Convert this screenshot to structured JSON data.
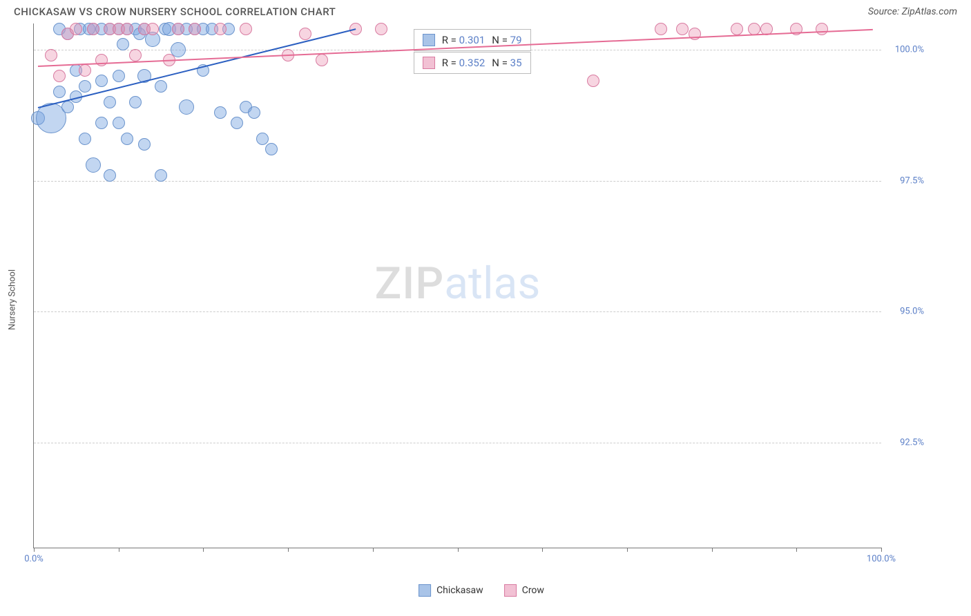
{
  "title": "CHICKASAW VS CROW NURSERY SCHOOL CORRELATION CHART",
  "source": "Source: ZipAtlas.com",
  "ylabel": "Nursery School",
  "watermark_part1": "ZIP",
  "watermark_part2": "atlas",
  "chart": {
    "type": "scatter",
    "background_color": "#ffffff",
    "grid_color": "#cccccc",
    "axis_color": "#777777",
    "xlim": [
      0,
      100
    ],
    "ylim": [
      90.5,
      100.5
    ],
    "xticks": [
      0,
      10,
      20,
      30,
      40,
      50,
      60,
      70,
      80,
      90,
      100
    ],
    "xtick_labels": {
      "0": "0.0%",
      "100": "100.0%"
    },
    "yticks": [
      92.5,
      95.0,
      97.5,
      100.0
    ],
    "ytick_labels": [
      "92.5%",
      "95.0%",
      "97.5%",
      "100.0%"
    ],
    "series": [
      {
        "name": "Chickasaw",
        "fill": "rgba(120,165,225,0.45)",
        "stroke": "#6a93cc",
        "legend_fill": "#a9c4e8",
        "legend_stroke": "#6a93cc",
        "trend_color": "#2b5fc1",
        "trend": {
          "x1": 0.5,
          "y1": 98.9,
          "x2": 38,
          "y2": 100.4
        },
        "R": "0.301",
        "N": "79",
        "points": [
          {
            "x": 0.5,
            "y": 98.7,
            "r": 10
          },
          {
            "x": 2,
            "y": 98.7,
            "r": 22
          },
          {
            "x": 3,
            "y": 99.2,
            "r": 9
          },
          {
            "x": 3,
            "y": 100.4,
            "r": 9
          },
          {
            "x": 4,
            "y": 98.9,
            "r": 9
          },
          {
            "x": 4,
            "y": 100.3,
            "r": 9
          },
          {
            "x": 5,
            "y": 99.6,
            "r": 9
          },
          {
            "x": 5,
            "y": 99.1,
            "r": 9
          },
          {
            "x": 5.5,
            "y": 100.4,
            "r": 9
          },
          {
            "x": 6,
            "y": 98.3,
            "r": 9
          },
          {
            "x": 6,
            "y": 99.3,
            "r": 9
          },
          {
            "x": 6.5,
            "y": 100.4,
            "r": 9
          },
          {
            "x": 7,
            "y": 97.8,
            "r": 11
          },
          {
            "x": 7,
            "y": 100.4,
            "r": 9
          },
          {
            "x": 8,
            "y": 98.6,
            "r": 9
          },
          {
            "x": 8,
            "y": 99.4,
            "r": 9
          },
          {
            "x": 8,
            "y": 100.4,
            "r": 9
          },
          {
            "x": 9,
            "y": 97.6,
            "r": 9
          },
          {
            "x": 9,
            "y": 99.0,
            "r": 9
          },
          {
            "x": 9,
            "y": 100.4,
            "r": 9
          },
          {
            "x": 10,
            "y": 98.6,
            "r": 9
          },
          {
            "x": 10,
            "y": 99.5,
            "r": 9
          },
          {
            "x": 10,
            "y": 100.4,
            "r": 9
          },
          {
            "x": 10.5,
            "y": 100.1,
            "r": 9
          },
          {
            "x": 11,
            "y": 98.3,
            "r": 9
          },
          {
            "x": 11,
            "y": 100.4,
            "r": 9
          },
          {
            "x": 12,
            "y": 99.0,
            "r": 9
          },
          {
            "x": 12,
            "y": 100.4,
            "r": 9
          },
          {
            "x": 12.5,
            "y": 100.3,
            "r": 9
          },
          {
            "x": 13,
            "y": 98.2,
            "r": 9
          },
          {
            "x": 13,
            "y": 99.5,
            "r": 10
          },
          {
            "x": 13,
            "y": 100.4,
            "r": 9
          },
          {
            "x": 14,
            "y": 100.2,
            "r": 11
          },
          {
            "x": 15,
            "y": 99.3,
            "r": 9
          },
          {
            "x": 15,
            "y": 97.6,
            "r": 9
          },
          {
            "x": 15.5,
            "y": 100.4,
            "r": 9
          },
          {
            "x": 16,
            "y": 100.4,
            "r": 10
          },
          {
            "x": 17,
            "y": 100.0,
            "r": 11
          },
          {
            "x": 17,
            "y": 100.4,
            "r": 9
          },
          {
            "x": 18,
            "y": 98.9,
            "r": 11
          },
          {
            "x": 18,
            "y": 100.4,
            "r": 9
          },
          {
            "x": 19,
            "y": 100.4,
            "r": 9
          },
          {
            "x": 20,
            "y": 99.6,
            "r": 9
          },
          {
            "x": 20,
            "y": 100.4,
            "r": 9
          },
          {
            "x": 21,
            "y": 100.4,
            "r": 9
          },
          {
            "x": 22,
            "y": 98.8,
            "r": 9
          },
          {
            "x": 23,
            "y": 100.4,
            "r": 9
          },
          {
            "x": 24,
            "y": 98.6,
            "r": 9
          },
          {
            "x": 25,
            "y": 98.9,
            "r": 9
          },
          {
            "x": 26,
            "y": 98.8,
            "r": 9
          },
          {
            "x": 27,
            "y": 98.3,
            "r": 9
          },
          {
            "x": 28,
            "y": 98.1,
            "r": 9
          }
        ]
      },
      {
        "name": "Crow",
        "fill": "rgba(235,150,180,0.40)",
        "stroke": "#d87aa0",
        "legend_fill": "#f2c1d4",
        "legend_stroke": "#d87aa0",
        "trend_color": "#e56b94",
        "trend": {
          "x1": 0.5,
          "y1": 99.7,
          "x2": 99,
          "y2": 100.4
        },
        "R": "0.352",
        "N": "35",
        "points": [
          {
            "x": 2,
            "y": 99.9,
            "r": 9
          },
          {
            "x": 3,
            "y": 99.5,
            "r": 9
          },
          {
            "x": 4,
            "y": 100.3,
            "r": 9
          },
          {
            "x": 5,
            "y": 100.4,
            "r": 9
          },
          {
            "x": 6,
            "y": 99.6,
            "r": 9
          },
          {
            "x": 7,
            "y": 100.4,
            "r": 9
          },
          {
            "x": 8,
            "y": 99.8,
            "r": 9
          },
          {
            "x": 9,
            "y": 100.4,
            "r": 9
          },
          {
            "x": 10,
            "y": 100.4,
            "r": 9
          },
          {
            "x": 11,
            "y": 100.4,
            "r": 9
          },
          {
            "x": 12,
            "y": 99.9,
            "r": 9
          },
          {
            "x": 13,
            "y": 100.4,
            "r": 9
          },
          {
            "x": 14,
            "y": 100.4,
            "r": 9
          },
          {
            "x": 16,
            "y": 99.8,
            "r": 9
          },
          {
            "x": 17,
            "y": 100.4,
            "r": 9
          },
          {
            "x": 19,
            "y": 100.4,
            "r": 9
          },
          {
            "x": 22,
            "y": 100.4,
            "r": 9
          },
          {
            "x": 25,
            "y": 100.4,
            "r": 9
          },
          {
            "x": 30,
            "y": 99.9,
            "r": 9
          },
          {
            "x": 32,
            "y": 100.3,
            "r": 9
          },
          {
            "x": 34,
            "y": 99.8,
            "r": 9
          },
          {
            "x": 38,
            "y": 100.4,
            "r": 9
          },
          {
            "x": 41,
            "y": 100.4,
            "r": 9
          },
          {
            "x": 66,
            "y": 99.4,
            "r": 9
          },
          {
            "x": 74,
            "y": 100.4,
            "r": 9
          },
          {
            "x": 76.5,
            "y": 100.4,
            "r": 9
          },
          {
            "x": 78,
            "y": 100.3,
            "r": 9
          },
          {
            "x": 83,
            "y": 100.4,
            "r": 9
          },
          {
            "x": 85,
            "y": 100.4,
            "r": 9
          },
          {
            "x": 86.5,
            "y": 100.4,
            "r": 9
          },
          {
            "x": 90,
            "y": 100.4,
            "r": 9
          },
          {
            "x": 93,
            "y": 100.4,
            "r": 9
          }
        ]
      }
    ],
    "stats_boxes": [
      {
        "series": 0,
        "left_pct": 44.8,
        "top_pct": 1
      },
      {
        "series": 1,
        "left_pct": 44.8,
        "top_pct": 5.4
      }
    ]
  },
  "legend": {
    "items": [
      {
        "label": "Chickasaw",
        "series": 0
      },
      {
        "label": "Crow",
        "series": 1
      }
    ]
  }
}
